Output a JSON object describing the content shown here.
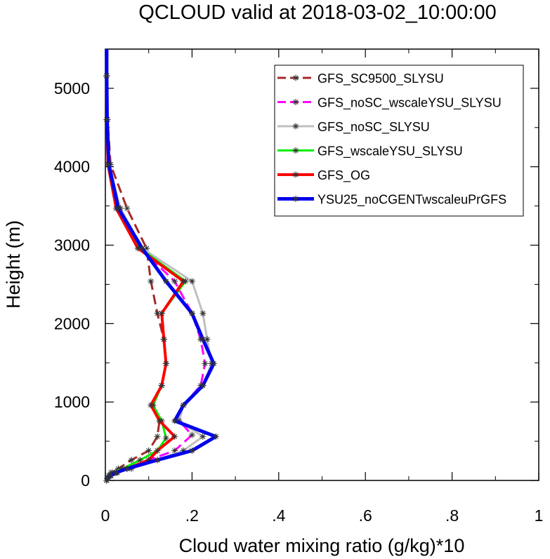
{
  "chart_data": {
    "type": "line",
    "title": "QCLOUD valid at 2018-03-02_10:00:00",
    "xlabel": "Cloud water mixing ratio (g/kg)*10",
    "ylabel": "Height (m)",
    "xlim": [
      0,
      1
    ],
    "ylim": [
      0,
      5500
    ],
    "x_ticks": [
      0,
      0.2,
      0.4,
      0.6,
      0.8,
      1
    ],
    "x_tick_labels": [
      "0",
      ".2",
      ".4",
      ".6",
      ".8",
      "1"
    ],
    "y_ticks": [
      0,
      1000,
      2000,
      3000,
      4000,
      5000
    ],
    "y_tick_labels": [
      "0",
      "1000",
      "2000",
      "3000",
      "4000",
      "5000"
    ],
    "grid": false,
    "legend_position": "top-right",
    "series": [
      {
        "name": "GFS_SC9500_SLYSU",
        "color": "#a52a2a",
        "dash": "dashed",
        "width": 3,
        "points": [
          [
            0.003,
            0
          ],
          [
            0.005,
            30
          ],
          [
            0.008,
            60
          ],
          [
            0.013,
            100
          ],
          [
            0.03,
            150
          ],
          [
            0.06,
            260
          ],
          [
            0.1,
            380
          ],
          [
            0.12,
            560
          ],
          [
            0.125,
            760
          ],
          [
            0.11,
            960
          ],
          [
            0.13,
            1210
          ],
          [
            0.14,
            1490
          ],
          [
            0.135,
            1800
          ],
          [
            0.12,
            2130
          ],
          [
            0.105,
            2540
          ],
          [
            0.095,
            2960
          ],
          [
            0.05,
            3470
          ],
          [
            0.012,
            4030
          ],
          [
            0.005,
            4600
          ],
          [
            0.003,
            5160
          ],
          [
            0.003,
            5500
          ]
        ]
      },
      {
        "name": "GFS_noSC_wscaleYSU_SLYSU",
        "color": "#ff00ff",
        "dash": "dashed",
        "width": 3,
        "points": [
          [
            0.003,
            0
          ],
          [
            0.006,
            30
          ],
          [
            0.012,
            60
          ],
          [
            0.025,
            100
          ],
          [
            0.05,
            150
          ],
          [
            0.1,
            260
          ],
          [
            0.16,
            380
          ],
          [
            0.2,
            580
          ],
          [
            0.17,
            760
          ],
          [
            0.18,
            960
          ],
          [
            0.22,
            1210
          ],
          [
            0.23,
            1490
          ],
          [
            0.22,
            1800
          ],
          [
            0.2,
            2130
          ],
          [
            0.16,
            2540
          ],
          [
            0.08,
            2960
          ],
          [
            0.03,
            3470
          ],
          [
            0.008,
            4030
          ],
          [
            0.004,
            4600
          ],
          [
            0.003,
            5160
          ],
          [
            0.003,
            5500
          ]
        ]
      },
      {
        "name": "GFS_noSC_SLYSU",
        "color": "#c0c0c0",
        "dash": "solid",
        "width": 3,
        "points": [
          [
            0.003,
            0
          ],
          [
            0.006,
            30
          ],
          [
            0.013,
            60
          ],
          [
            0.028,
            100
          ],
          [
            0.06,
            150
          ],
          [
            0.12,
            260
          ],
          [
            0.18,
            380
          ],
          [
            0.225,
            560
          ],
          [
            0.17,
            760
          ],
          [
            0.18,
            960
          ],
          [
            0.225,
            1210
          ],
          [
            0.245,
            1490
          ],
          [
            0.235,
            1800
          ],
          [
            0.225,
            2130
          ],
          [
            0.2,
            2540
          ],
          [
            0.085,
            2960
          ],
          [
            0.035,
            3470
          ],
          [
            0.008,
            4030
          ],
          [
            0.004,
            4600
          ],
          [
            0.003,
            5160
          ],
          [
            0.003,
            5500
          ]
        ]
      },
      {
        "name": "GFS_wscaleYSU_SLYSU",
        "color": "#00ee00",
        "dash": "solid",
        "width": 3,
        "points": [
          [
            0.003,
            0
          ],
          [
            0.005,
            30
          ],
          [
            0.009,
            60
          ],
          [
            0.017,
            100
          ],
          [
            0.04,
            150
          ],
          [
            0.08,
            260
          ],
          [
            0.12,
            380
          ],
          [
            0.14,
            540
          ],
          [
            0.13,
            760
          ],
          [
            0.11,
            960
          ],
          [
            0.13,
            1210
          ],
          [
            0.14,
            1490
          ],
          [
            0.135,
            1800
          ],
          [
            0.13,
            2130
          ],
          [
            0.185,
            2540
          ],
          [
            0.08,
            2960
          ],
          [
            0.025,
            3470
          ],
          [
            0.006,
            4030
          ],
          [
            0.003,
            4600
          ],
          [
            0.003,
            5160
          ],
          [
            0.003,
            5500
          ]
        ]
      },
      {
        "name": "GFS_OG",
        "color": "#ff0000",
        "dash": "solid",
        "width": 4,
        "points": [
          [
            0.003,
            0
          ],
          [
            0.006,
            30
          ],
          [
            0.012,
            60
          ],
          [
            0.022,
            100
          ],
          [
            0.05,
            150
          ],
          [
            0.1,
            260
          ],
          [
            0.12,
            380
          ],
          [
            0.16,
            560
          ],
          [
            0.125,
            760
          ],
          [
            0.105,
            960
          ],
          [
            0.13,
            1210
          ],
          [
            0.14,
            1490
          ],
          [
            0.135,
            1800
          ],
          [
            0.13,
            2130
          ],
          [
            0.18,
            2540
          ],
          [
            0.075,
            2960
          ],
          [
            0.025,
            3470
          ],
          [
            0.006,
            4030
          ],
          [
            0.003,
            4600
          ],
          [
            0.003,
            5160
          ],
          [
            0.003,
            5500
          ]
        ]
      },
      {
        "name": "YSU25_noCGENTwscaleuPrGFS",
        "color": "#0000ee",
        "dash": "solid",
        "width": 5,
        "points": [
          [
            0.003,
            0
          ],
          [
            0.006,
            30
          ],
          [
            0.012,
            60
          ],
          [
            0.025,
            100
          ],
          [
            0.05,
            150
          ],
          [
            0.12,
            260
          ],
          [
            0.2,
            380
          ],
          [
            0.255,
            560
          ],
          [
            0.16,
            760
          ],
          [
            0.18,
            960
          ],
          [
            0.225,
            1210
          ],
          [
            0.25,
            1490
          ],
          [
            0.225,
            1800
          ],
          [
            0.2,
            2130
          ],
          [
            0.14,
            2540
          ],
          [
            0.085,
            2960
          ],
          [
            0.03,
            3470
          ],
          [
            0.008,
            4030
          ],
          [
            0.004,
            4600
          ],
          [
            0.003,
            5160
          ],
          [
            0.003,
            5500
          ]
        ]
      }
    ]
  }
}
